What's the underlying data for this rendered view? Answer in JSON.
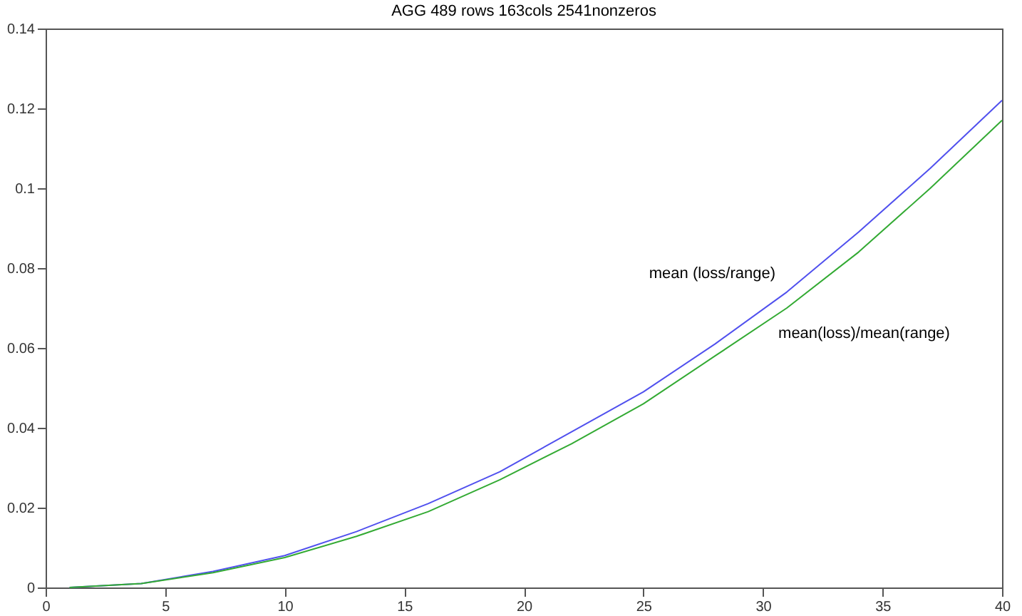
{
  "chart_data": {
    "type": "line",
    "title": "AGG 489 rows 163cols 2541nonzeros",
    "x": [
      1,
      4,
      7,
      10,
      13,
      16,
      19,
      22,
      25,
      28,
      31,
      34,
      37,
      40
    ],
    "series": [
      {
        "name": "mean (loss/range)",
        "color": "#5050ee",
        "values": [
          0,
          0.001,
          0.004,
          0.008,
          0.014,
          0.021,
          0.029,
          0.039,
          0.049,
          0.061,
          0.074,
          0.089,
          0.105,
          0.122
        ]
      },
      {
        "name": "mean(loss)/mean(range)",
        "color": "#33aa33",
        "values": [
          0,
          0.001,
          0.0037,
          0.0075,
          0.0128,
          0.019,
          0.027,
          0.036,
          0.046,
          0.058,
          0.07,
          0.084,
          0.1,
          0.117
        ]
      }
    ],
    "xlim": [
      0,
      40
    ],
    "xticks": [
      0,
      5,
      10,
      15,
      20,
      25,
      30,
      35,
      40
    ],
    "ylim": [
      0,
      0.14
    ],
    "yticks": [
      0,
      0.02,
      0.04,
      0.06,
      0.08,
      0.1,
      0.12,
      0.14
    ],
    "grid": false,
    "legend": false,
    "marker": "none",
    "line_style": "solid"
  }
}
